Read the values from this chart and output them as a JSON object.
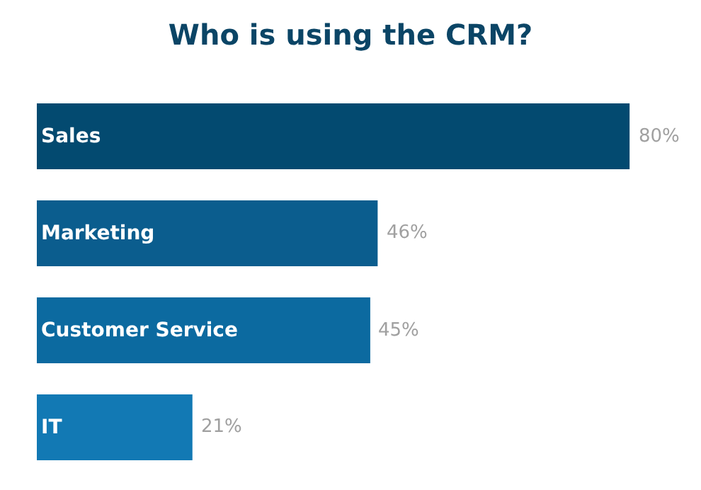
{
  "chart_data": {
    "type": "bar",
    "orientation": "horizontal",
    "title": "Who is using the CRM?",
    "categories": [
      "Sales",
      "Marketing",
      "Customer Service",
      "IT"
    ],
    "values": [
      80,
      46,
      45,
      21
    ],
    "colors": [
      "#034a70",
      "#0b5d8e",
      "#0c6aa0",
      "#1279b4"
    ],
    "value_labels": [
      "80%",
      "46%",
      "45%",
      "21%"
    ],
    "tick_labels": false
  }
}
